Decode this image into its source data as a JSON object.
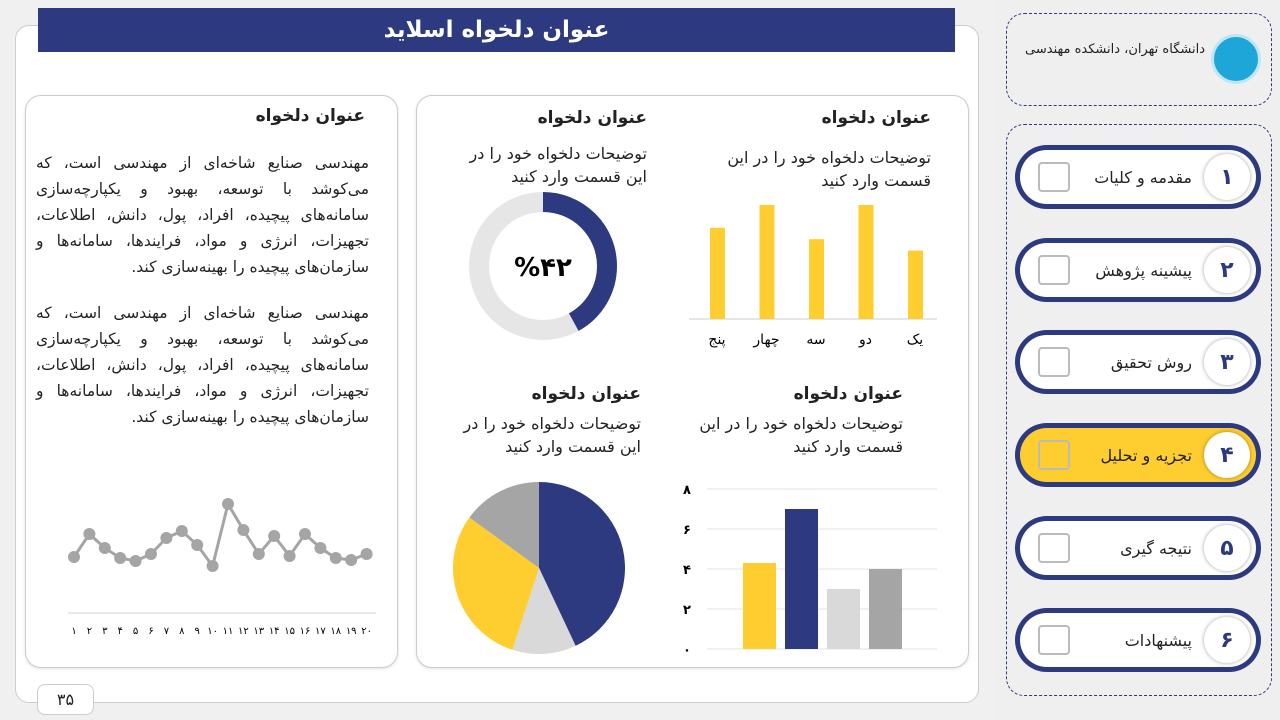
{
  "slide_title": "عنوان دلخواه اسلاید",
  "page_number": "۳۵",
  "text_card": {
    "title": "عنوان دلخواه",
    "paragraphs": [
      "مهندسی صنایع شاخه‌ای از مهندسی است، که می‌کوشد با توسعه، بهبود و یکپارچه‌سازی سامانه‌های پیچیده، افراد، پول، دانش، اطلاعات، تجهیزات، انرژی و مواد، فرایندها، سامانه‌ها و سازمان‌های پیچیده را بهینه‌سازی کند.",
      "مهندسی صنایع شاخه‌ای از مهندسی است، که می‌کوشد با توسعه، بهبود و یکپارچه‌سازی سامانه‌های پیچیده، افراد، پول، دانش، اطلاعات، تجهیزات، انرژی و مواد، فرایندها، سامانه‌ها و سازمان‌های پیچیده را بهینه‌سازی کند."
    ]
  },
  "panels": [
    {
      "title": "عنوان دلخواه",
      "desc": "توضیحات دلخواه خود را در این قسمت وارد کنید"
    },
    {
      "title": "عنوان دلخواه",
      "desc": "توضیحات دلخواه خود را در این قسمت وارد کنید"
    },
    {
      "title": "عنوان دلخواه",
      "desc": "توضیحات دلخواه خود را در این قسمت وارد کنید"
    },
    {
      "title": "عنوان دلخواه",
      "desc": "توضیحات دلخواه خود را در این قسمت وارد کنید"
    }
  ],
  "colors": {
    "navy": "#2d3a80",
    "yellow": "#fecd2f",
    "light_gray": "#d9d9d9",
    "gray": "#a5a5a5"
  },
  "chart_data": [
    {
      "type": "bar",
      "title": "",
      "categories": [
        "یک",
        "دو",
        "سه",
        "چهار",
        "پنج"
      ],
      "values": [
        3,
        5,
        3.5,
        5,
        4
      ],
      "color": "#fecd2f"
    },
    {
      "type": "pie",
      "subtype": "donut",
      "label": "%۴۲",
      "values": [
        42,
        58
      ],
      "colors": [
        "#2d3a80",
        "#e6e6e6"
      ]
    },
    {
      "type": "pie",
      "values": [
        43,
        12,
        30,
        15
      ],
      "colors": [
        "#2d3a80",
        "#d9d9d9",
        "#fecd2f",
        "#a5a5a5"
      ]
    },
    {
      "type": "bar",
      "yticks": [
        "۰",
        "۲",
        "۴",
        "۶",
        "۸"
      ],
      "ylim": [
        0,
        8
      ],
      "values": [
        4.3,
        7,
        3,
        4
      ],
      "colors": [
        "#fecd2f",
        "#2d3a80",
        "#d9d9d9",
        "#a5a5a5"
      ],
      "grid": true
    },
    {
      "type": "line",
      "categories": [
        "۱",
        "۲",
        "۳",
        "۴",
        "۵",
        "۶",
        "۷",
        "۸",
        "۹",
        "۱۰",
        "۱۱",
        "۱۲",
        "۱۳",
        "۱۴",
        "۱۵",
        "۱۶",
        "۱۷",
        "۱۸",
        "۱۹",
        "۲۰"
      ],
      "values": [
        2.8,
        5.1,
        3.7,
        2.7,
        2.4,
        3.1,
        4.7,
        5.4,
        4.0,
        1.9,
        8.1,
        5.5,
        3.1,
        4.9,
        2.9,
        5.1,
        3.7,
        2.7,
        2.5,
        3.1
      ],
      "color": "#a5a5a5"
    }
  ],
  "sidebar": {
    "university": "دانشگاه تهران، دانشکده مهندسی",
    "items": [
      {
        "num": "۱",
        "label": "مقدمه و کلیات",
        "icon": "document-edit-icon"
      },
      {
        "num": "۲",
        "label": "پیشینه پژوهش",
        "icon": "book-icon"
      },
      {
        "num": "۳",
        "label": "روش تحقیق",
        "icon": "user-search-icon"
      },
      {
        "num": "۴",
        "label": "تجزیه و تحلیل",
        "icon": "bar-chart-icon",
        "active": true
      },
      {
        "num": "۵",
        "label": "نتیجه گیری",
        "icon": "question-check-icon"
      },
      {
        "num": "۶",
        "label": "پیشنهادات",
        "icon": "chat-icon"
      }
    ]
  }
}
